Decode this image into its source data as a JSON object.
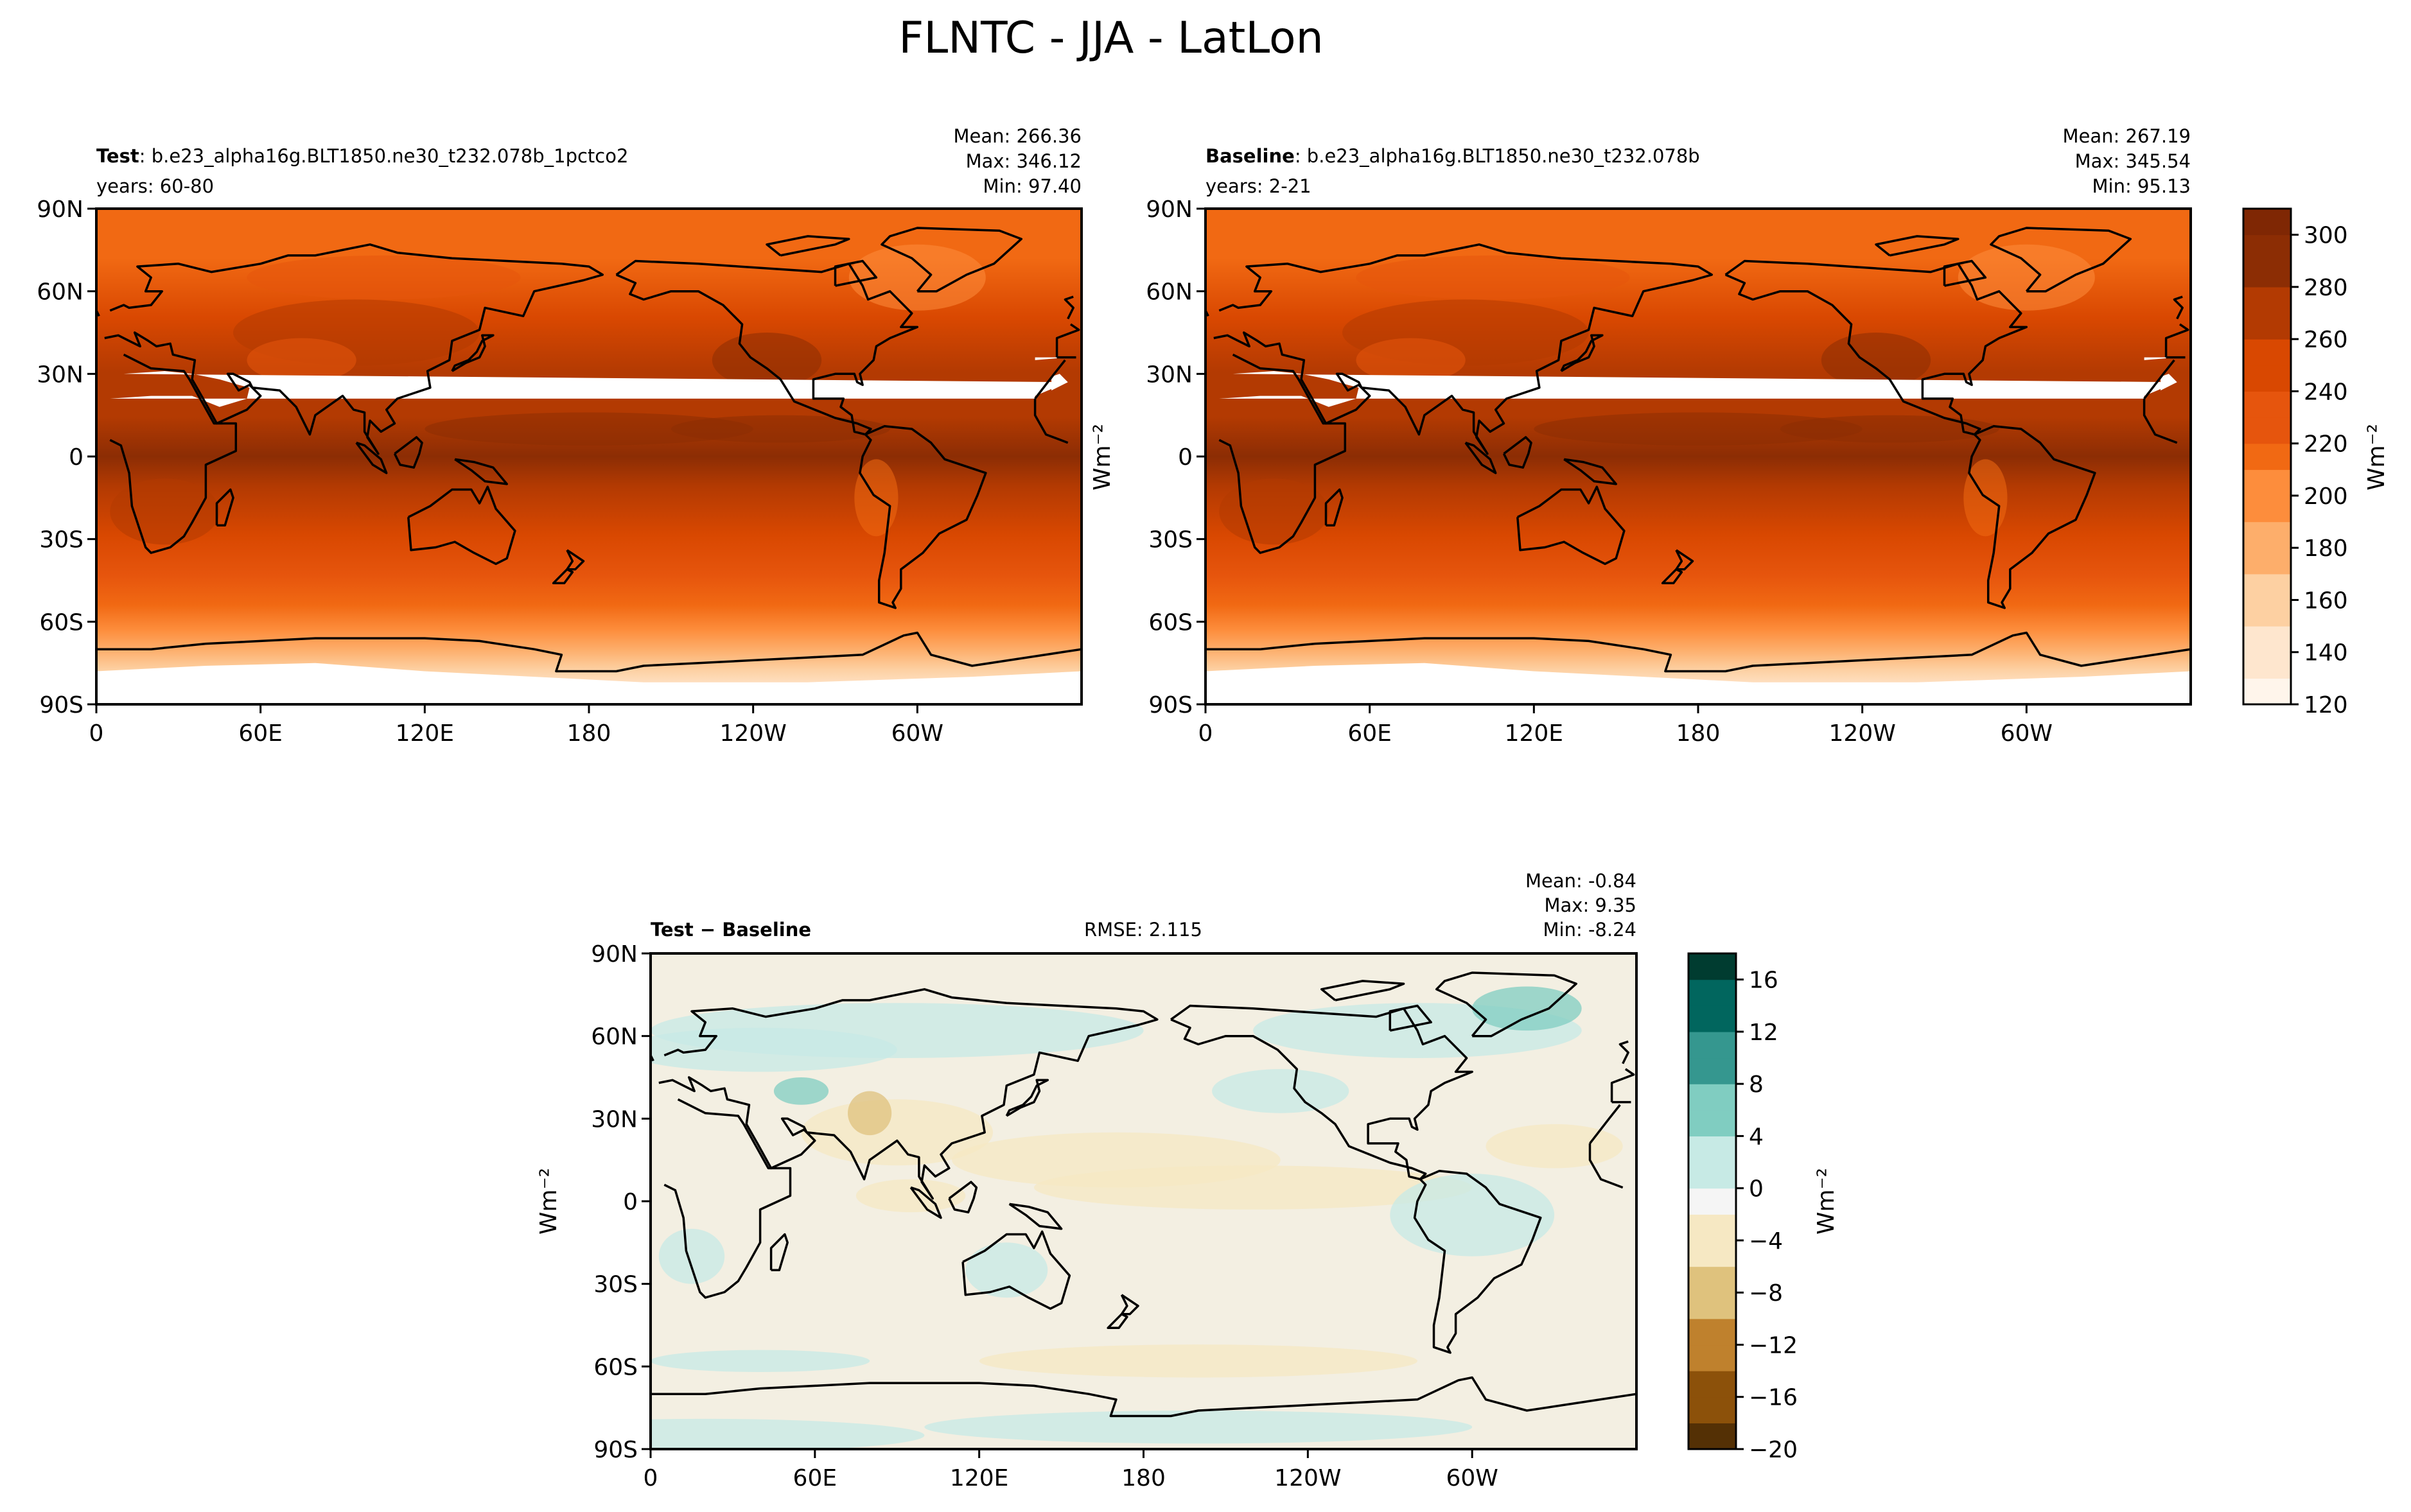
{
  "title": "FLNTC - JJA - LatLon",
  "colors": {
    "test_ramp": [
      "#fff5eb",
      "#fee6ce",
      "#fdd0a2",
      "#fdae6b",
      "#fd8d3c",
      "#f16913",
      "#e6550d",
      "#d94801",
      "#b33a02",
      "#8c2d04",
      "#7f2704"
    ],
    "diff_ramp": [
      "#543005",
      "#8c510a",
      "#bf812d",
      "#dfc27d",
      "#f6e8c3",
      "#f5f5f5",
      "#c7eae5",
      "#80cdc1",
      "#35978f",
      "#01665e",
      "#003c30"
    ],
    "coast": "#000000",
    "missing": "#ffffff"
  },
  "chart_data": [
    {
      "type": "heatmap",
      "panel": "test",
      "name_bold": "Test",
      "name_rest": ": b.e23_alpha16g.BLT1850.ne30_t232.078b_1pctco2",
      "years": "years: 60-80",
      "stats": [
        "Mean: 266.36",
        "Max: 346.12",
        "Min: 97.40"
      ],
      "xticks": [
        "0",
        "60E",
        "120E",
        "180",
        "120W",
        "60W"
      ],
      "yticks": [
        "90N",
        "60N",
        "30N",
        "0",
        "30S",
        "60S",
        "90S"
      ],
      "xlim": [
        0,
        360
      ],
      "ylim": [
        -90,
        90
      ],
      "ylabel": "Wm⁻²",
      "tropical_peak": 300,
      "polar_min": 140
    },
    {
      "type": "heatmap",
      "panel": "baseline",
      "name_bold": "Baseline",
      "name_rest": ": b.e23_alpha16g.BLT1850.ne30_t232.078b",
      "years": "years: 2-21",
      "stats": [
        "Mean: 267.19",
        "Max: 345.54",
        "Min: 95.13"
      ],
      "xticks": [
        "0",
        "60E",
        "120E",
        "180",
        "120W",
        "60W"
      ],
      "yticks": [
        "90N",
        "60N",
        "30N",
        "0",
        "30S",
        "60S",
        "90S"
      ],
      "xlim": [
        0,
        360
      ],
      "ylim": [
        -90,
        90
      ],
      "tropical_peak": 302,
      "polar_min": 138
    },
    {
      "type": "heatmap",
      "panel": "diff",
      "name": "Test − Baseline",
      "rmse": "RMSE: 2.115",
      "stats": [
        "Mean: -0.84",
        "Max:  9.35",
        "Min: -8.24"
      ],
      "xticks": [
        "0",
        "60E",
        "120E",
        "180",
        "120W",
        "60W"
      ],
      "yticks": [
        "90N",
        "60N",
        "30N",
        "0",
        "30S",
        "60S",
        "90S"
      ],
      "xlim": [
        0,
        360
      ],
      "ylim": [
        -90,
        90
      ],
      "ylabel": "Wm⁻²"
    }
  ],
  "colorbar_main": {
    "ticks": [
      "120",
      "140",
      "160",
      "180",
      "200",
      "220",
      "240",
      "260",
      "280",
      "300"
    ],
    "range": [
      120,
      310
    ],
    "label": "Wm⁻²"
  },
  "colorbar_diff": {
    "ticks": [
      "−20",
      "−16",
      "−12",
      "−8",
      "−4",
      "0",
      "4",
      "8",
      "12",
      "16"
    ],
    "range": [
      -20,
      18
    ],
    "label": "Wm⁻²"
  }
}
